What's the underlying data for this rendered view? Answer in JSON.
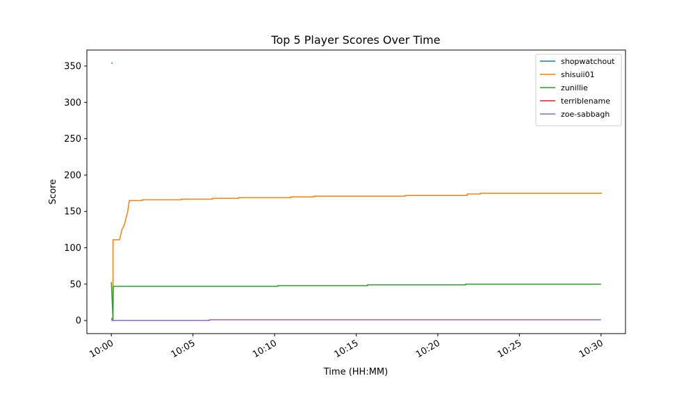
{
  "chart_data": {
    "type": "line",
    "title": "Top 5 Player Scores Over Time",
    "x_label": "Time (HH:MM)",
    "y_label": "Score",
    "xlim": [
      -1.5,
      31.5
    ],
    "ylim": [
      -18,
      372
    ],
    "xticks": [
      {
        "value": 0,
        "label": "10:00"
      },
      {
        "value": 5,
        "label": "10:05"
      },
      {
        "value": 10,
        "label": "10:10"
      },
      {
        "value": 15,
        "label": "10:15"
      },
      {
        "value": 20,
        "label": "10:20"
      },
      {
        "value": 25,
        "label": "10:25"
      },
      {
        "value": 30,
        "label": "10:30"
      }
    ],
    "yticks": [
      0,
      50,
      100,
      150,
      200,
      250,
      300,
      350
    ],
    "legend": "upper right",
    "series": [
      {
        "name": "shopwatchout",
        "color": "#1f77b4",
        "x": [
          0,
          0.08
        ],
        "values": [
          354,
          354
        ]
      },
      {
        "name": "shisuii01",
        "color": "#ff7f0e",
        "x": [
          0,
          0.1,
          0.1,
          0.5,
          0.65,
          0.8,
          1.0,
          1.1,
          1.9,
          1.9,
          4.3,
          4.3,
          6.2,
          6.2,
          7.8,
          7.8,
          11.0,
          11.0,
          12.4,
          12.4,
          18.0,
          18.0,
          21.8,
          21.8,
          22.6,
          22.6,
          30,
          30
        ],
        "values": [
          2,
          2,
          111,
          111,
          125,
          132,
          150,
          165,
          165,
          166,
          166,
          167,
          167,
          168,
          168,
          169,
          169,
          170,
          170,
          171,
          171,
          172,
          172,
          174,
          174,
          175,
          175,
          176
        ]
      },
      {
        "name": "zunillie",
        "color": "#2ca02c",
        "x": [
          0,
          0.1,
          0.12,
          10.2,
          10.2,
          15.7,
          15.7,
          21.7,
          21.7,
          30
        ],
        "values": [
          53,
          0,
          47,
          47,
          48,
          48,
          49,
          49,
          50,
          50
        ]
      },
      {
        "name": "terriblename",
        "color": "#d62728",
        "x": [
          0,
          0.05
        ],
        "values": [
          3,
          3
        ]
      },
      {
        "name": "zoe-sabbagh",
        "color": "#9467bd",
        "x": [
          0,
          0.05,
          6,
          6,
          30
        ],
        "values": [
          2,
          0,
          0,
          1,
          1
        ]
      }
    ]
  }
}
